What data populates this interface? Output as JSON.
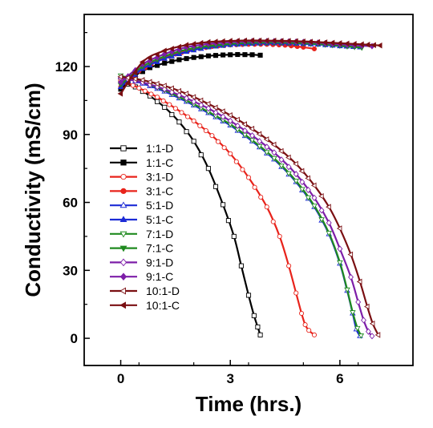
{
  "chart_data": {
    "type": "line",
    "xlabel": "Time (hrs.)",
    "ylabel": "Conductivity (mS/cm)",
    "xlim": [
      -1,
      8
    ],
    "ylim": [
      -12,
      143
    ],
    "x_ticks": [
      0,
      3,
      6
    ],
    "y_ticks": [
      0,
      30,
      60,
      90,
      120
    ],
    "legend_position": "left-center",
    "series": [
      {
        "name": "1:1-D",
        "color": "#000000",
        "marker": "square-open",
        "points": [
          [
            0,
            113.5
          ],
          [
            0.4,
            111
          ],
          [
            0.8,
            107
          ],
          [
            1.2,
            102
          ],
          [
            1.6,
            95.5
          ],
          [
            2.0,
            87
          ],
          [
            2.4,
            75
          ],
          [
            2.8,
            59
          ],
          [
            3.1,
            45
          ],
          [
            3.3,
            32
          ],
          [
            3.5,
            19
          ],
          [
            3.65,
            10
          ],
          [
            3.75,
            5
          ],
          [
            3.82,
            1.5
          ]
        ]
      },
      {
        "name": "1:1-C",
        "color": "#000000",
        "marker": "square-filled",
        "points": [
          [
            0,
            110
          ],
          [
            0.4,
            116
          ],
          [
            0.8,
            119.5
          ],
          [
            1.2,
            121.5
          ],
          [
            1.6,
            123
          ],
          [
            2.0,
            124
          ],
          [
            2.4,
            124.7
          ],
          [
            2.8,
            125.1
          ],
          [
            3.2,
            125.3
          ],
          [
            3.6,
            125.2
          ],
          [
            3.82,
            125
          ]
        ]
      },
      {
        "name": "3:1-D",
        "color": "#e8231b",
        "marker": "circle-open",
        "points": [
          [
            0,
            114
          ],
          [
            0.5,
            110.5
          ],
          [
            1.0,
            106.5
          ],
          [
            1.5,
            101.5
          ],
          [
            2.0,
            96
          ],
          [
            2.5,
            89.5
          ],
          [
            3.0,
            81.5
          ],
          [
            3.5,
            71
          ],
          [
            4.0,
            58
          ],
          [
            4.35,
            45
          ],
          [
            4.6,
            32
          ],
          [
            4.8,
            20
          ],
          [
            4.95,
            11
          ],
          [
            5.05,
            6
          ],
          [
            5.15,
            3.5
          ],
          [
            5.3,
            1.5
          ]
        ]
      },
      {
        "name": "3:1-C",
        "color": "#e8231b",
        "marker": "circle-filled",
        "points": [
          [
            0,
            111
          ],
          [
            0.5,
            118
          ],
          [
            1.0,
            122.5
          ],
          [
            1.5,
            125.5
          ],
          [
            2.0,
            127.5
          ],
          [
            2.5,
            128.8
          ],
          [
            3.0,
            129.5
          ],
          [
            3.5,
            129.8
          ],
          [
            4.0,
            129.8
          ],
          [
            4.5,
            129.4
          ],
          [
            5.0,
            128.5
          ],
          [
            5.3,
            127.8
          ]
        ]
      },
      {
        "name": "5:1-D",
        "color": "#1c2bd6",
        "marker": "triangle-up-open",
        "points": [
          [
            0,
            115.5
          ],
          [
            0.6,
            112.5
          ],
          [
            1.2,
            109
          ],
          [
            1.8,
            104.5
          ],
          [
            2.4,
            99.5
          ],
          [
            3.0,
            94
          ],
          [
            3.6,
            87
          ],
          [
            4.2,
            79
          ],
          [
            4.8,
            69
          ],
          [
            5.3,
            58
          ],
          [
            5.7,
            46
          ],
          [
            6.0,
            33
          ],
          [
            6.2,
            21
          ],
          [
            6.35,
            11
          ],
          [
            6.45,
            4
          ],
          [
            6.55,
            1
          ]
        ]
      },
      {
        "name": "5:1-C",
        "color": "#1c2bd6",
        "marker": "triangle-up-filled",
        "points": [
          [
            0,
            111
          ],
          [
            0.6,
            119
          ],
          [
            1.2,
            123.5
          ],
          [
            1.8,
            126.5
          ],
          [
            2.4,
            128.5
          ],
          [
            3.0,
            129.5
          ],
          [
            3.6,
            130.1
          ],
          [
            4.2,
            130.3
          ],
          [
            4.8,
            130.1
          ],
          [
            5.4,
            129.7
          ],
          [
            6.0,
            129
          ],
          [
            6.55,
            128.5
          ]
        ]
      },
      {
        "name": "7:1-D",
        "color": "#1f8a1f",
        "marker": "triangle-down-open",
        "points": [
          [
            0,
            116
          ],
          [
            0.6,
            113
          ],
          [
            1.2,
            109.5
          ],
          [
            1.8,
            105
          ],
          [
            2.4,
            100
          ],
          [
            3.0,
            94.5
          ],
          [
            3.6,
            87.5
          ],
          [
            4.2,
            79.5
          ],
          [
            4.8,
            69.5
          ],
          [
            5.3,
            58.5
          ],
          [
            5.7,
            46.5
          ],
          [
            6.0,
            33.5
          ],
          [
            6.2,
            21.5
          ],
          [
            6.35,
            11.5
          ],
          [
            6.48,
            4.5
          ],
          [
            6.58,
            1.2
          ]
        ]
      },
      {
        "name": "7:1-C",
        "color": "#1f8a1f",
        "marker": "triangle-down-filled",
        "points": [
          [
            0,
            112
          ],
          [
            0.6,
            120
          ],
          [
            1.2,
            124.5
          ],
          [
            1.8,
            127.5
          ],
          [
            2.4,
            129
          ],
          [
            3.0,
            130
          ],
          [
            3.6,
            130.5
          ],
          [
            4.2,
            130.6
          ],
          [
            4.8,
            130.4
          ],
          [
            5.4,
            129.9
          ],
          [
            6.0,
            129.2
          ],
          [
            6.6,
            128.3
          ]
        ]
      },
      {
        "name": "9:1-D",
        "color": "#7d1ea8",
        "marker": "diamond-open",
        "points": [
          [
            0,
            115
          ],
          [
            0.6,
            113
          ],
          [
            1.2,
            110
          ],
          [
            1.8,
            106
          ],
          [
            2.4,
            101.5
          ],
          [
            3.0,
            96
          ],
          [
            3.6,
            89.5
          ],
          [
            4.2,
            82
          ],
          [
            4.8,
            72.5
          ],
          [
            5.3,
            62
          ],
          [
            5.7,
            51
          ],
          [
            6.0,
            39.5
          ],
          [
            6.3,
            27
          ],
          [
            6.5,
            16
          ],
          [
            6.65,
            8
          ],
          [
            6.78,
            3
          ],
          [
            6.88,
            1
          ]
        ]
      },
      {
        "name": "9:1-C",
        "color": "#7d1ea8",
        "marker": "diamond-filled",
        "points": [
          [
            0,
            113
          ],
          [
            0.6,
            121
          ],
          [
            1.2,
            125.5
          ],
          [
            1.8,
            128.5
          ],
          [
            2.4,
            130
          ],
          [
            3.0,
            130.8
          ],
          [
            3.6,
            131.2
          ],
          [
            4.2,
            131.2
          ],
          [
            4.8,
            131
          ],
          [
            5.4,
            130.5
          ],
          [
            6.0,
            129.8
          ],
          [
            6.6,
            129.2
          ],
          [
            6.88,
            129
          ]
        ]
      },
      {
        "name": "10:1-D",
        "color": "#7a0f12",
        "marker": "triangle-left-open",
        "points": [
          [
            0,
            115.5
          ],
          [
            0.6,
            114
          ],
          [
            1.2,
            111.5
          ],
          [
            1.8,
            108
          ],
          [
            2.4,
            103.5
          ],
          [
            3.0,
            98.5
          ],
          [
            3.6,
            92.5
          ],
          [
            4.2,
            85.5
          ],
          [
            4.8,
            77
          ],
          [
            5.3,
            67.5
          ],
          [
            5.7,
            58
          ],
          [
            6.0,
            48.5
          ],
          [
            6.3,
            37
          ],
          [
            6.55,
            25
          ],
          [
            6.75,
            14
          ],
          [
            6.9,
            6.5
          ],
          [
            7.05,
            1.5
          ]
        ]
      },
      {
        "name": "10:1-C",
        "color": "#7a0f12",
        "marker": "triangle-left-filled",
        "points": [
          [
            0,
            108
          ],
          [
            0.6,
            122
          ],
          [
            1.2,
            127
          ],
          [
            1.8,
            129.5
          ],
          [
            2.4,
            130.8
          ],
          [
            3.0,
            131.3
          ],
          [
            3.6,
            131.5
          ],
          [
            4.2,
            131.4
          ],
          [
            4.8,
            131.2
          ],
          [
            5.4,
            130.8
          ],
          [
            6.0,
            130.3
          ],
          [
            6.6,
            129.8
          ],
          [
            7.1,
            129.3
          ]
        ]
      }
    ]
  }
}
